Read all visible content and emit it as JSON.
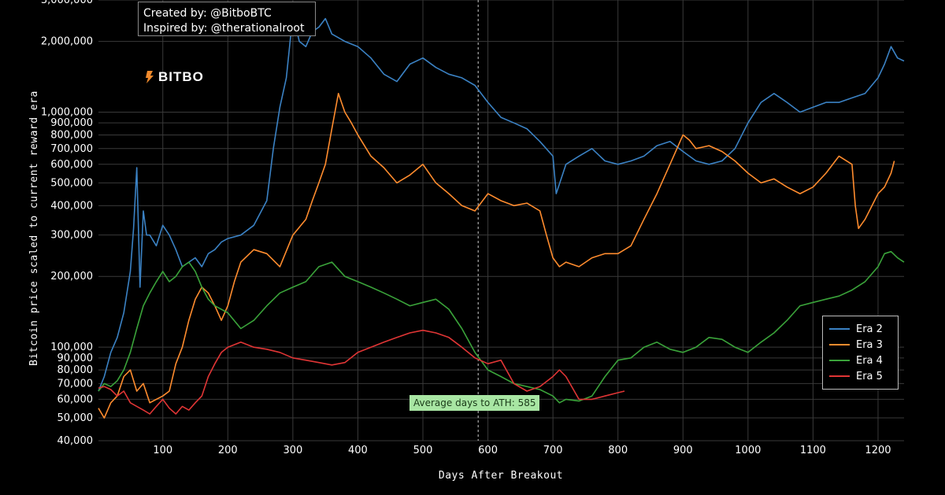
{
  "credits": {
    "line1": "Created by: @BitboBTC",
    "line2": "Inspired by: @therationalroot"
  },
  "logo_text": "BITBO",
  "chart_data": {
    "type": "line",
    "title": "",
    "xlabel": "Days After Breakout",
    "ylabel": "Bitcoin price scaled to current reward era",
    "y_scale": "log",
    "xlim": [
      1,
      1240
    ],
    "ylim": [
      40000,
      3000000
    ],
    "x_ticks": [
      100,
      200,
      300,
      400,
      500,
      600,
      700,
      800,
      900,
      1000,
      1100,
      1200
    ],
    "y_ticks": [
      {
        "value": 40000,
        "label": "40,000"
      },
      {
        "value": 50000,
        "label": "50,000"
      },
      {
        "value": 60000,
        "label": "60,000"
      },
      {
        "value": 70000,
        "label": "70,000"
      },
      {
        "value": 80000,
        "label": "80,000"
      },
      {
        "value": 90000,
        "label": "90,000"
      },
      {
        "value": 100000,
        "label": "100,000"
      },
      {
        "value": 200000,
        "label": "200,000"
      },
      {
        "value": 300000,
        "label": "300,000"
      },
      {
        "value": 400000,
        "label": "400,000"
      },
      {
        "value": 500000,
        "label": "500,000"
      },
      {
        "value": 600000,
        "label": "600,000"
      },
      {
        "value": 700000,
        "label": "700,000"
      },
      {
        "value": 800000,
        "label": "800,000"
      },
      {
        "value": 900000,
        "label": "900,000"
      },
      {
        "value": 1000000,
        "label": "1,000,000"
      },
      {
        "value": 2000000,
        "label": "2,000,000"
      },
      {
        "value": 3000000,
        "label": "3,000,000"
      }
    ],
    "grid": true,
    "legend_position": "bottom-right",
    "annotation": {
      "x": 585,
      "text": "Average days to ATH: 585"
    },
    "series": [
      {
        "name": "Era 2",
        "color": "#3b82c4",
        "x": [
          1,
          10,
          20,
          30,
          40,
          50,
          55,
          60,
          65,
          70,
          75,
          80,
          90,
          100,
          110,
          120,
          130,
          140,
          150,
          160,
          170,
          180,
          190,
          200,
          220,
          240,
          260,
          270,
          280,
          290,
          300,
          310,
          320,
          330,
          340,
          350,
          360,
          380,
          400,
          420,
          440,
          460,
          480,
          500,
          520,
          540,
          560,
          580,
          600,
          620,
          640,
          660,
          680,
          700,
          705,
          720,
          740,
          760,
          780,
          800,
          820,
          840,
          860,
          880,
          900,
          920,
          940,
          960,
          980,
          1000,
          1020,
          1040,
          1060,
          1080,
          1100,
          1120,
          1140,
          1160,
          1180,
          1200,
          1210,
          1220,
          1230,
          1240
        ],
        "values": [
          65000,
          75000,
          95000,
          110000,
          140000,
          210000,
          320000,
          580000,
          180000,
          380000,
          300000,
          300000,
          270000,
          330000,
          300000,
          260000,
          220000,
          230000,
          240000,
          220000,
          250000,
          260000,
          280000,
          290000,
          300000,
          330000,
          420000,
          700000,
          1050000,
          1400000,
          2600000,
          2000000,
          1900000,
          2200000,
          2300000,
          2500000,
          2150000,
          2000000,
          1900000,
          1700000,
          1450000,
          1350000,
          1600000,
          1700000,
          1550000,
          1450000,
          1400000,
          1300000,
          1100000,
          950000,
          900000,
          850000,
          750000,
          650000,
          450000,
          600000,
          650000,
          700000,
          620000,
          600000,
          620000,
          650000,
          720000,
          750000,
          680000,
          620000,
          600000,
          620000,
          700000,
          900000,
          1100000,
          1200000,
          1100000,
          1000000,
          1050000,
          1100000,
          1100000,
          1150000,
          1200000,
          1400000,
          1600000,
          1900000,
          1700000,
          1650000
        ]
      },
      {
        "name": "Era 3",
        "color": "#ff8c2e",
        "x": [
          1,
          10,
          20,
          30,
          40,
          50,
          60,
          70,
          80,
          90,
          100,
          110,
          120,
          130,
          140,
          150,
          160,
          170,
          180,
          190,
          200,
          210,
          220,
          240,
          260,
          280,
          300,
          320,
          330,
          340,
          350,
          360,
          370,
          380,
          390,
          400,
          420,
          440,
          460,
          480,
          500,
          520,
          540,
          560,
          580,
          600,
          620,
          640,
          660,
          680,
          690,
          700,
          710,
          720,
          740,
          760,
          780,
          800,
          820,
          840,
          860,
          880,
          900,
          910,
          920,
          940,
          960,
          980,
          1000,
          1020,
          1040,
          1060,
          1080,
          1100,
          1120,
          1140,
          1160,
          1165,
          1170,
          1180,
          1200,
          1210,
          1220,
          1225
        ],
        "values": [
          55000,
          50000,
          58000,
          62000,
          75000,
          80000,
          65000,
          70000,
          58000,
          60000,
          62000,
          65000,
          85000,
          100000,
          130000,
          160000,
          180000,
          170000,
          150000,
          130000,
          150000,
          190000,
          230000,
          260000,
          250000,
          220000,
          300000,
          350000,
          420000,
          500000,
          600000,
          850000,
          1200000,
          1000000,
          900000,
          800000,
          650000,
          580000,
          500000,
          540000,
          600000,
          500000,
          450000,
          400000,
          380000,
          450000,
          420000,
          400000,
          410000,
          380000,
          300000,
          240000,
          220000,
          230000,
          220000,
          240000,
          250000,
          250000,
          270000,
          350000,
          450000,
          600000,
          800000,
          760000,
          700000,
          720000,
          680000,
          620000,
          550000,
          500000,
          520000,
          480000,
          450000,
          480000,
          550000,
          650000,
          600000,
          400000,
          320000,
          350000,
          450000,
          480000,
          550000,
          620000
        ]
      },
      {
        "name": "Era 4",
        "color": "#3aa33a",
        "x": [
          1,
          10,
          20,
          30,
          40,
          50,
          60,
          70,
          80,
          90,
          100,
          110,
          120,
          130,
          140,
          150,
          160,
          170,
          180,
          200,
          220,
          240,
          260,
          280,
          300,
          320,
          340,
          360,
          380,
          400,
          420,
          440,
          460,
          480,
          500,
          520,
          540,
          560,
          580,
          600,
          620,
          640,
          660,
          680,
          700,
          710,
          720,
          740,
          760,
          780,
          800,
          820,
          840,
          860,
          880,
          900,
          920,
          940,
          960,
          980,
          1000,
          1020,
          1040,
          1060,
          1080,
          1100,
          1120,
          1140,
          1160,
          1180,
          1200,
          1210,
          1220,
          1230,
          1240
        ],
        "values": [
          65000,
          70000,
          68000,
          72000,
          80000,
          95000,
          120000,
          150000,
          170000,
          190000,
          210000,
          190000,
          200000,
          220000,
          230000,
          210000,
          180000,
          160000,
          150000,
          140000,
          120000,
          130000,
          150000,
          170000,
          180000,
          190000,
          220000,
          230000,
          200000,
          190000,
          180000,
          170000,
          160000,
          150000,
          155000,
          160000,
          145000,
          120000,
          95000,
          80000,
          75000,
          70000,
          68000,
          66000,
          62000,
          58000,
          60000,
          59000,
          62000,
          75000,
          88000,
          90000,
          100000,
          105000,
          98000,
          95000,
          100000,
          110000,
          108000,
          100000,
          95000,
          105000,
          115000,
          130000,
          150000,
          155000,
          160000,
          165000,
          175000,
          190000,
          220000,
          250000,
          255000,
          240000,
          230000
        ]
      },
      {
        "name": "Era 5",
        "color": "#e03535",
        "x": [
          1,
          10,
          20,
          30,
          40,
          50,
          60,
          70,
          80,
          90,
          100,
          110,
          120,
          130,
          140,
          150,
          160,
          170,
          180,
          190,
          200,
          220,
          240,
          260,
          280,
          300,
          320,
          340,
          360,
          380,
          400,
          420,
          440,
          460,
          480,
          500,
          520,
          540,
          560,
          580,
          600,
          620,
          640,
          660,
          680,
          700,
          710,
          720,
          740,
          760,
          780,
          800,
          810
        ],
        "values": [
          67000,
          68000,
          66000,
          62000,
          65000,
          58000,
          56000,
          54000,
          52000,
          56000,
          60000,
          55000,
          52000,
          56000,
          54000,
          58000,
          62000,
          75000,
          85000,
          95000,
          100000,
          105000,
          100000,
          98000,
          95000,
          90000,
          88000,
          86000,
          84000,
          86000,
          95000,
          100000,
          105000,
          110000,
          115000,
          118000,
          115000,
          110000,
          100000,
          90000,
          85000,
          88000,
          70000,
          65000,
          68000,
          75000,
          80000,
          75000,
          60000,
          60000,
          62000,
          64000,
          65000
        ]
      }
    ]
  }
}
